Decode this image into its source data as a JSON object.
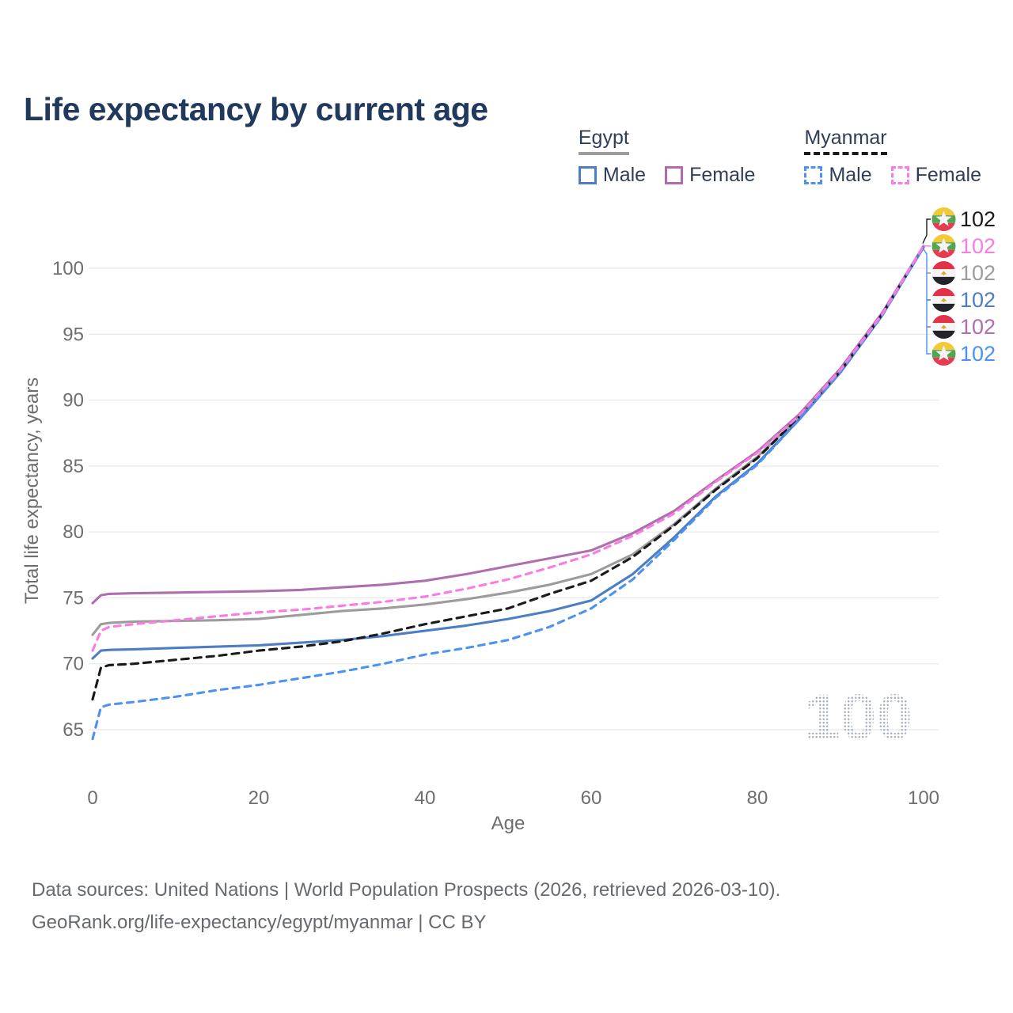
{
  "title": "Life expectancy by current age",
  "legend": {
    "groups": [
      {
        "label": "Egypt",
        "line_style": "solid",
        "items": [
          {
            "label": "Male",
            "color": "#4d7ec4"
          },
          {
            "label": "Female",
            "color": "#b468b0"
          }
        ]
      },
      {
        "label": "Myanmar",
        "line_style": "dashed",
        "items": [
          {
            "label": "Male",
            "color": "#4c92f2"
          },
          {
            "label": "Female",
            "color": "#fb7be4"
          }
        ]
      }
    ]
  },
  "chart_data": {
    "type": "line",
    "title": "Life expectancy by current age",
    "xlabel": "Age",
    "ylabel": "Total life expectancy, years",
    "xlim": [
      0,
      100
    ],
    "ylim": [
      63,
      103
    ],
    "xticks": [
      0,
      20,
      40,
      60,
      80,
      100
    ],
    "yticks": [
      65,
      70,
      75,
      80,
      85,
      90,
      95,
      100
    ],
    "grid": true,
    "legend_position": "top-right",
    "x": [
      0,
      1,
      2,
      5,
      10,
      15,
      20,
      25,
      30,
      35,
      40,
      45,
      50,
      55,
      60,
      65,
      70,
      75,
      80,
      85,
      90,
      95,
      100
    ],
    "series": [
      {
        "name": "Egypt All",
        "country": "Egypt",
        "color": "#9c9c9c",
        "dash": false,
        "values": [
          72.2,
          73.0,
          73.1,
          73.2,
          73.25,
          73.3,
          73.4,
          73.7,
          74.0,
          74.2,
          74.5,
          74.9,
          75.4,
          76.0,
          76.8,
          78.3,
          80.6,
          83.3,
          85.7,
          88.7,
          92.2,
          96.5,
          101.6
        ]
      },
      {
        "name": "Egypt Female",
        "country": "Egypt",
        "color": "#ae6fad",
        "dash": false,
        "values": [
          74.6,
          75.2,
          75.3,
          75.35,
          75.4,
          75.45,
          75.5,
          75.6,
          75.8,
          76.0,
          76.3,
          76.8,
          77.4,
          78.0,
          78.6,
          79.9,
          81.6,
          83.9,
          86.1,
          88.9,
          92.4,
          96.6,
          101.7
        ]
      },
      {
        "name": "Egypt Male",
        "country": "Egypt",
        "color": "#4d7ec4",
        "dash": false,
        "values": [
          70.4,
          71.0,
          71.05,
          71.1,
          71.2,
          71.3,
          71.4,
          71.6,
          71.8,
          72.1,
          72.5,
          72.9,
          73.4,
          74.0,
          74.8,
          76.8,
          79.6,
          82.7,
          85.2,
          88.5,
          92.1,
          96.4,
          101.6
        ]
      },
      {
        "name": "Myanmar All",
        "country": "Myanmar",
        "color": "#1a1a1a",
        "dash": true,
        "values": [
          67.3,
          69.7,
          69.9,
          70.0,
          70.3,
          70.6,
          71.0,
          71.3,
          71.7,
          72.3,
          73.0,
          73.6,
          74.2,
          75.3,
          76.3,
          78.1,
          80.5,
          83.2,
          85.6,
          88.7,
          92.2,
          96.5,
          101.6
        ]
      },
      {
        "name": "Myanmar Male",
        "country": "Myanmar",
        "color": "#4c92f2",
        "dash": true,
        "values": [
          64.3,
          66.7,
          66.9,
          67.1,
          67.5,
          68.0,
          68.4,
          68.9,
          69.4,
          70.0,
          70.7,
          71.2,
          71.8,
          72.8,
          74.2,
          76.4,
          79.4,
          82.6,
          85.1,
          88.5,
          92.1,
          96.4,
          101.6
        ]
      },
      {
        "name": "Myanmar Female",
        "country": "Myanmar",
        "color": "#fb7be4",
        "dash": true,
        "values": [
          71.0,
          72.5,
          72.8,
          73.0,
          73.3,
          73.6,
          73.9,
          74.1,
          74.4,
          74.7,
          75.1,
          75.7,
          76.4,
          77.3,
          78.3,
          79.7,
          81.4,
          83.8,
          86.0,
          88.8,
          92.3,
          96.5,
          101.7
        ]
      }
    ],
    "end_labels": [
      {
        "flag": "myanmar",
        "value": "102",
        "color": "#1a1a1a"
      },
      {
        "flag": "myanmar",
        "value": "102",
        "color": "#fb7be4"
      },
      {
        "flag": "egypt",
        "value": "102",
        "color": "#9c9c9c"
      },
      {
        "flag": "egypt",
        "value": "102",
        "color": "#4d7ec4"
      },
      {
        "flag": "egypt",
        "value": "102",
        "color": "#ae6fad"
      },
      {
        "flag": "myanmar",
        "value": "102",
        "color": "#4c92f2"
      }
    ]
  },
  "watermark": "100",
  "footer": {
    "line1": "Data sources: United Nations | World Population Prospects (2026, retrieved 2026-03-10).",
    "line2": "GeoRank.org/life-expectancy/egypt/myanmar | CC BY"
  }
}
